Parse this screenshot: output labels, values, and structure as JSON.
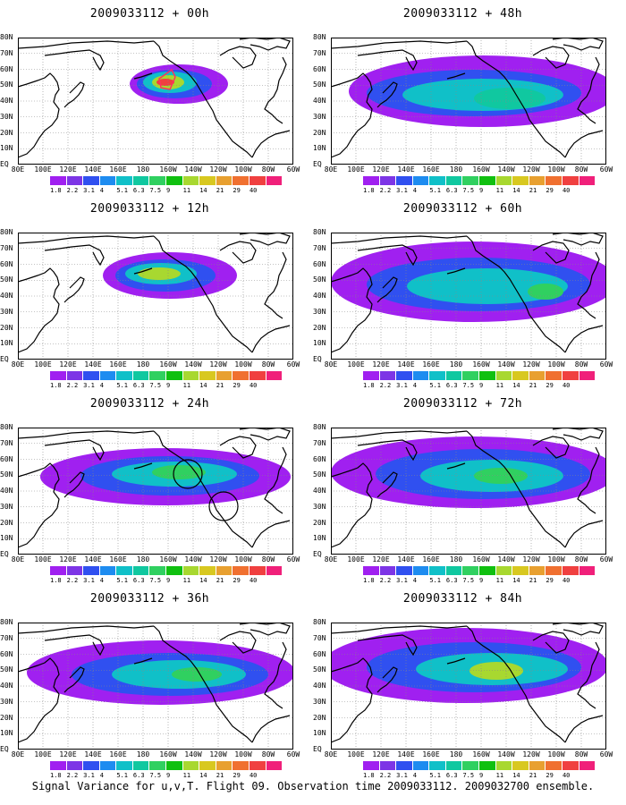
{
  "footer_caption": "Signal Variance for u,v,T. Flight 09. Observation time 2009033112. 2009032700 ensemble.",
  "lat_labels": [
    "80N",
    "70N",
    "60N",
    "50N",
    "40N",
    "30N",
    "20N",
    "10N",
    "EQ"
  ],
  "lon_labels": [
    "80E",
    "100E",
    "120E",
    "140E",
    "160E",
    "180",
    "160W",
    "140W",
    "120W",
    "100W",
    "80W",
    "60W"
  ],
  "colorbar": {
    "colors": [
      "#a020f0",
      "#7d35e6",
      "#3050f0",
      "#1e8cf0",
      "#10c0c8",
      "#10c8a0",
      "#30d060",
      "#10c010",
      "#a8d830",
      "#d8c820",
      "#e8a030",
      "#f07030",
      "#f04040",
      "#f0207a"
    ],
    "labels": [
      "1.8",
      "2.2",
      "3.1",
      "4",
      "5.1",
      "6.3",
      "7.5",
      "9",
      "11",
      "14",
      "21",
      "29",
      "40",
      ""
    ]
  },
  "panels": [
    {
      "title": "2009033112 + 00h"
    },
    {
      "title": "2009033112 + 48h"
    },
    {
      "title": "2009033112 + 12h"
    },
    {
      "title": "2009033112 + 60h"
    },
    {
      "title": "2009033112 + 24h"
    },
    {
      "title": "2009033112 + 72h"
    },
    {
      "title": "2009033112 + 36h"
    },
    {
      "title": "2009033112 + 84h"
    }
  ]
}
